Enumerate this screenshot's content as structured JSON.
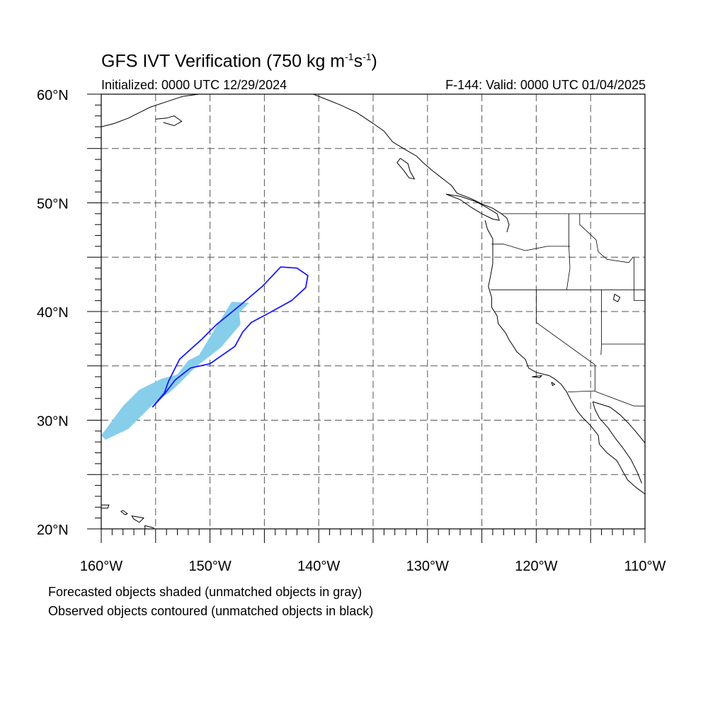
{
  "figure": {
    "title_main": "GFS IVT Verification (750 kg m",
    "title_exp1": "-1",
    "title_mid": "s",
    "title_exp2": "-1",
    "title_end": ")",
    "initialized": "Initialized: 0000 UTC 12/29/2024",
    "valid": "F-144: Valid: 0000 UTC 01/04/2025",
    "note_forecast": "Forecasted objects shaded (unmatched objects in gray)",
    "note_observed": "Observed objects contoured (unmatched objects in black)"
  },
  "axes": {
    "lat_labels": [
      "60°N",
      "50°N",
      "40°N",
      "30°N",
      "20°N"
    ],
    "lon_labels": [
      "160°W",
      "150°W",
      "140°W",
      "130°W",
      "120°W",
      "110°W"
    ],
    "lat_range": [
      20,
      60
    ],
    "lon_range": [
      -160,
      -110
    ],
    "grid": "dashed every 5°"
  },
  "colors": {
    "forecast_fill": "#87ceeb",
    "observed_contour": "#1a1aff",
    "coastline": "#000000",
    "grid": "#555555"
  },
  "objects": {
    "forecast_matched": [
      [
        [
          -146.4,
          40.8
        ],
        [
          -148,
          40.9
        ],
        [
          -149.5,
          38.5
        ],
        [
          -151,
          36
        ],
        [
          -152,
          35.5
        ],
        [
          -153,
          34.2
        ],
        [
          -154.5,
          33.8
        ],
        [
          -156.5,
          32.8
        ],
        [
          -158,
          31.3
        ],
        [
          -160,
          28.6
        ],
        [
          -159.6,
          28.2
        ],
        [
          -157.5,
          29.2
        ],
        [
          -155,
          31.7
        ],
        [
          -153.8,
          32.5
        ],
        [
          -153,
          33.2
        ],
        [
          -151.3,
          34.9
        ],
        [
          -149,
          36.7
        ],
        [
          -147.2,
          38.8
        ],
        [
          -147.3,
          39.9
        ]
      ]
    ],
    "observed_matched": [
      [
        [
          -155.3,
          31.2
        ],
        [
          -154.2,
          32.5
        ],
        [
          -153.8,
          33.6
        ],
        [
          -152.8,
          35.6
        ],
        [
          -150.7,
          37.5
        ],
        [
          -149.4,
          38.8
        ],
        [
          -147.2,
          40.6
        ],
        [
          -145.2,
          42.3
        ],
        [
          -143.5,
          44.1
        ],
        [
          -142,
          44
        ],
        [
          -141,
          43.3
        ],
        [
          -141.2,
          42.2
        ],
        [
          -142.5,
          41
        ],
        [
          -144.5,
          39.9
        ],
        [
          -146.2,
          39
        ],
        [
          -147,
          38.1
        ],
        [
          -147.7,
          36.8
        ],
        [
          -150,
          35.2
        ],
        [
          -151.8,
          34.8
        ],
        [
          -153.2,
          33.7
        ],
        [
          -154.2,
          32.4
        ],
        [
          -155.3,
          31.2
        ]
      ]
    ]
  }
}
